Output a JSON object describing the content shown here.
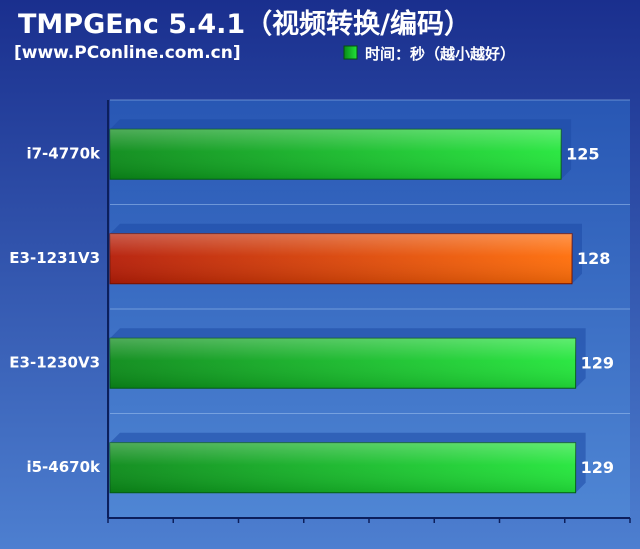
{
  "chart_data": {
    "type": "bar",
    "orientation": "horizontal",
    "title": "TMPGEnc 5.4.1（视频转换/编码）",
    "subtitle": "[www.PConline.com.cn]",
    "legend": {
      "label": "时间：秒（越小越好）",
      "placement": "top-right"
    },
    "categories": [
      "i7-4770k",
      "E3-1231V3",
      "E3-1230V3",
      "i5-4670k"
    ],
    "values": [
      125,
      128,
      129,
      129
    ],
    "value_labels": [
      "125",
      "128",
      "129",
      "129"
    ],
    "highlight_index": 1,
    "xlim": [
      0,
      144
    ],
    "grid": true,
    "colors": {
      "background_top": "#1a2f8e",
      "background_bottom": "#4d7fd0",
      "plot_top": "#2857b4",
      "plot_bottom": "#4f86d4",
      "bar_green_dark": "#0a8a18",
      "bar_green_light": "#22e63a",
      "bar_red_dark": "#b51c06",
      "bar_red_light": "#ff6d08",
      "axis": "#0c1f5c"
    }
  }
}
